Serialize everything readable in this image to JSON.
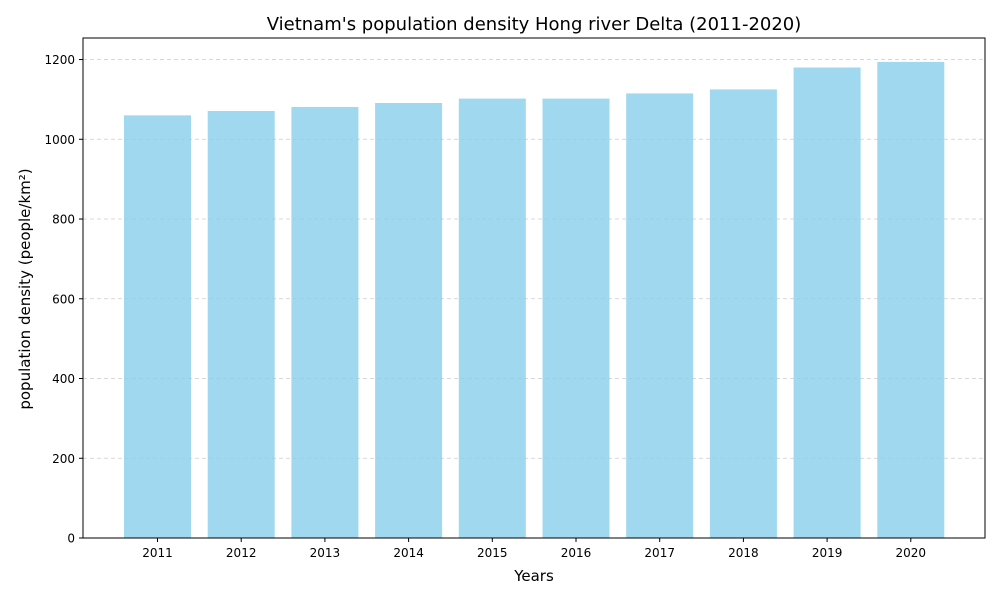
{
  "chart_data": {
    "type": "bar",
    "title": "Vietnam's population density Hong river Delta (2011-2020)",
    "xlabel": "Years",
    "ylabel": "population density (people/km²)",
    "categories": [
      "2011",
      "2012",
      "2013",
      "2014",
      "2015",
      "2016",
      "2017",
      "2018",
      "2019",
      "2020"
    ],
    "values": [
      1060,
      1071,
      1081,
      1091,
      1102,
      1102,
      1115,
      1125,
      1180,
      1194
    ],
    "ylim": [
      0,
      1254
    ],
    "yticks": [
      0,
      200,
      400,
      600,
      800,
      1000,
      1200
    ],
    "grid": "y-axis, dashed",
    "legend": "none",
    "colors": {
      "bar": "#87ceeb",
      "grid": "#cccccc",
      "axis": "#000000"
    }
  }
}
